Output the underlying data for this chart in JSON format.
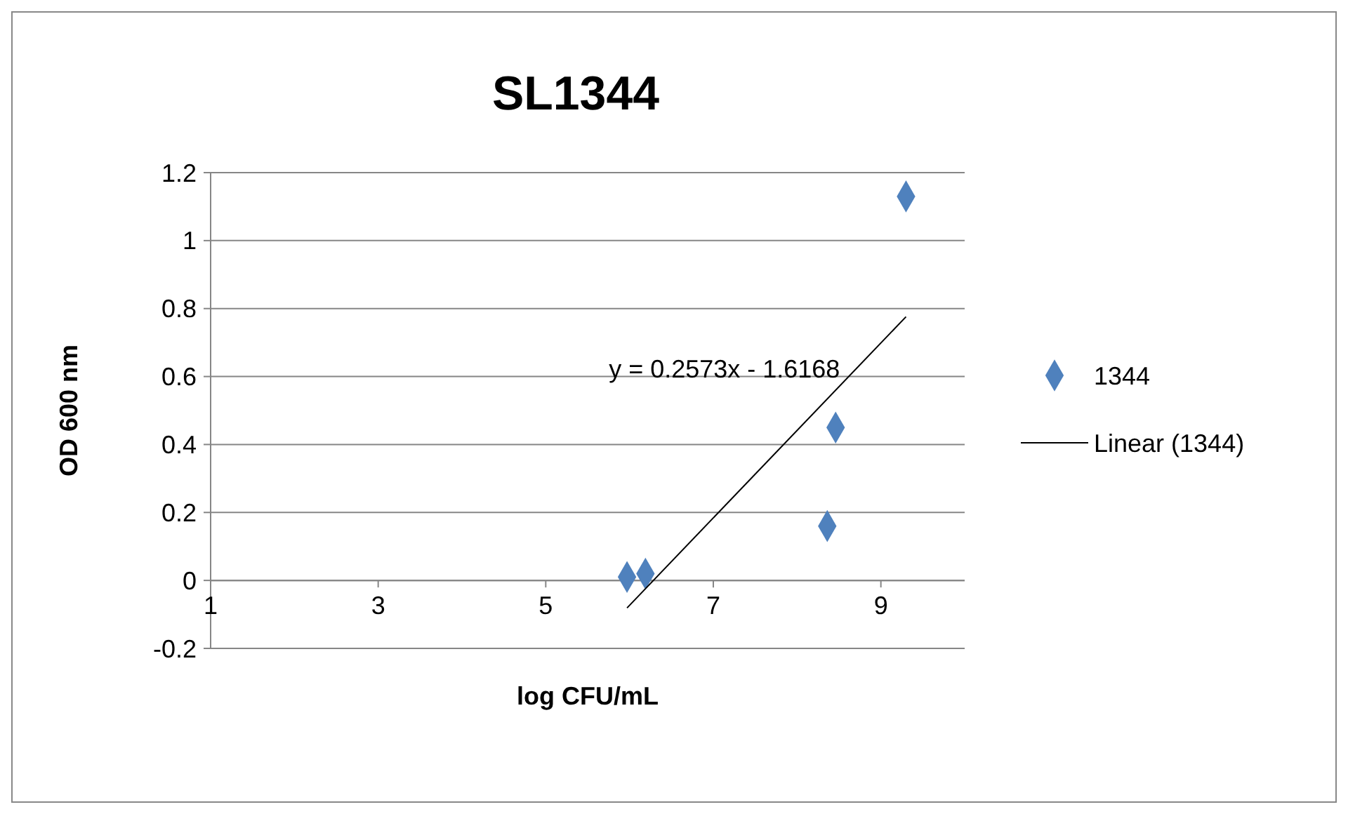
{
  "chart_data": {
    "type": "scatter",
    "title": "SL1344",
    "xlabel": "log CFU/mL",
    "ylabel": "OD 600 nm",
    "xlim": [
      1,
      10
    ],
    "xticks": [
      1,
      3,
      5,
      7,
      9
    ],
    "ylim": [
      -0.2,
      1.2
    ],
    "yticks": [
      -0.2,
      0,
      0.2,
      0.4,
      0.6,
      0.8,
      1,
      1.2
    ],
    "grid": "y",
    "legend": "right",
    "series": [
      {
        "name": "1344",
        "marker": "diamond",
        "color": "#4f81bd",
        "x": [
          5.97,
          6.19,
          8.36,
          8.46,
          9.3
        ],
        "values": [
          0.01,
          0.02,
          0.16,
          0.45,
          1.13
        ]
      },
      {
        "name": "Linear (1344)",
        "type": "line",
        "marker": "none",
        "color": "#000000",
        "x": [
          5.97,
          9.3
        ],
        "values": [
          -0.081,
          0.776
        ]
      }
    ],
    "annotations": [
      "y = 0.2573x - 1.6168"
    ]
  }
}
